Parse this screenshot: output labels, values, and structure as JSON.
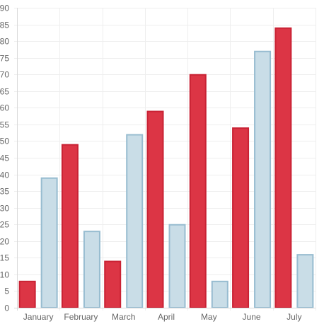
{
  "chart_data": {
    "type": "bar",
    "title": "",
    "xlabel": "",
    "ylabel": "",
    "categories": [
      "January",
      "February",
      "March",
      "April",
      "May",
      "June",
      "July"
    ],
    "series": [
      {
        "values": [
          8,
          49,
          14,
          59,
          70,
          54,
          84
        ],
        "color": "#dc3545",
        "stroke": "#c92234"
      },
      {
        "values": [
          39,
          23,
          52,
          25,
          8,
          77,
          16
        ],
        "color": "#c9dde7",
        "stroke": "#97bcd0"
      }
    ],
    "ylim": [
      0,
      90
    ],
    "yticks": [
      0,
      5,
      10,
      15,
      20,
      25,
      30,
      35,
      40,
      45,
      50,
      55,
      60,
      65,
      70,
      75,
      80,
      85,
      90
    ],
    "grid": true,
    "legend": "none"
  }
}
